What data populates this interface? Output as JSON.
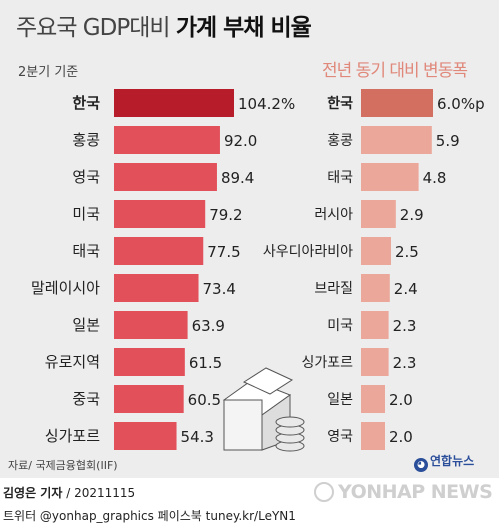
{
  "title": {
    "regular": "주요국 GDP대비",
    "bold": "가계 부채 비율"
  },
  "subtitle_left": "2분기 기준",
  "subtitle_right": "전년 동기 대비 변동폭",
  "chart_data": [
    {
      "type": "bar",
      "orientation": "horizontal",
      "subtitle": "2분기 기준",
      "categories": [
        "한국",
        "홍콩",
        "영국",
        "미국",
        "태국",
        "말레이시아",
        "일본",
        "유로지역",
        "중국",
        "싱가포르"
      ],
      "values": [
        104.2,
        92.0,
        89.4,
        79.2,
        77.5,
        73.4,
        63.9,
        61.5,
        60.5,
        54.3
      ],
      "value_labels": [
        "104.2%",
        "92.0",
        "89.4",
        "79.2",
        "77.5",
        "73.4",
        "63.9",
        "61.5",
        "60.5",
        "54.3"
      ],
      "unit": "%",
      "highlight": "한국",
      "colors": {
        "highlight": "#b71c2b",
        "bar": "#e2505a"
      }
    },
    {
      "type": "bar",
      "orientation": "horizontal",
      "title": "전년 동기 대비 변동폭",
      "categories": [
        "한국",
        "홍콩",
        "태국",
        "러시아",
        "사우디아라비아",
        "브라질",
        "미국",
        "싱가포르",
        "일본",
        "영국"
      ],
      "values": [
        6.0,
        5.9,
        4.8,
        2.9,
        2.5,
        2.4,
        2.3,
        2.3,
        2.0,
        2.0
      ],
      "value_labels": [
        "6.0%p",
        "5.9",
        "4.8",
        "2.9",
        "2.5",
        "2.4",
        "2.3",
        "2.3",
        "2.0",
        "2.0"
      ],
      "unit": "%p",
      "highlight": "한국",
      "colors": {
        "highlight": "#d26f60",
        "bar": "#eba79a"
      }
    }
  ],
  "source": "자료/ 국제금융협회(IIF)",
  "logo_text": "연합뉴스",
  "author": {
    "name": "김영은 기자",
    "date": " / 20211115"
  },
  "social": "트위터 @yonhap_graphics  페이스북 tuney.kr/LeYN1",
  "watermark": "YONHAP NEWS"
}
